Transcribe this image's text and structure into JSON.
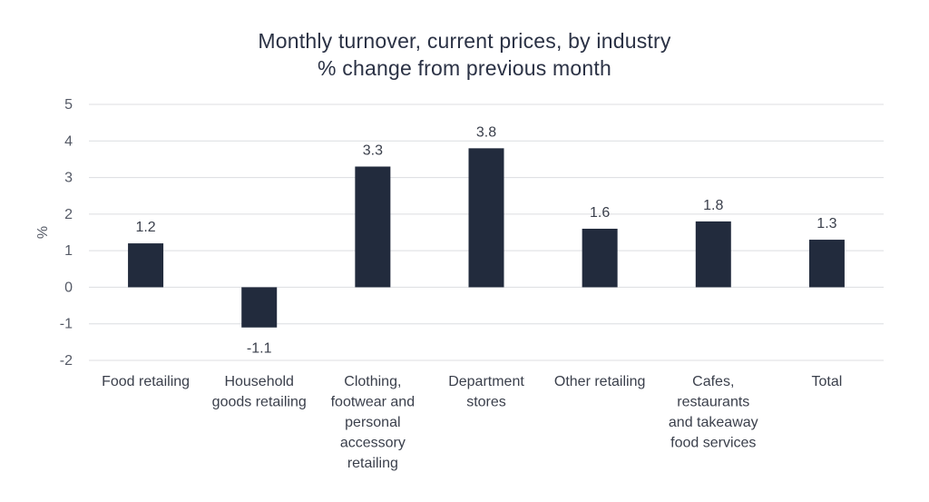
{
  "chart_data": {
    "type": "bar",
    "title": "Monthly turnover, current prices, by industry",
    "subtitle": "% change from previous month",
    "ylabel": "%",
    "xlabel": "",
    "ylim": [
      -2,
      5
    ],
    "yticks": [
      -2,
      -1,
      0,
      1,
      2,
      3,
      4,
      5
    ],
    "grid": true,
    "legend": "none",
    "bar_color": "#222b3d",
    "categories": [
      [
        "Food retailing"
      ],
      [
        "Household",
        "goods retailing"
      ],
      [
        "Clothing,",
        "footwear and",
        "personal",
        "accessory",
        "retailing"
      ],
      [
        "Department",
        "stores"
      ],
      [
        "Other retailing"
      ],
      [
        "Cafes,",
        "restaurants",
        "and takeaway",
        "food services"
      ],
      [
        "Total"
      ]
    ],
    "values": [
      1.2,
      -1.1,
      3.3,
      3.8,
      1.6,
      1.8,
      1.3
    ],
    "value_labels": [
      "1.2",
      "-1.1",
      "3.3",
      "3.8",
      "1.6",
      "1.8",
      "1.3"
    ]
  }
}
